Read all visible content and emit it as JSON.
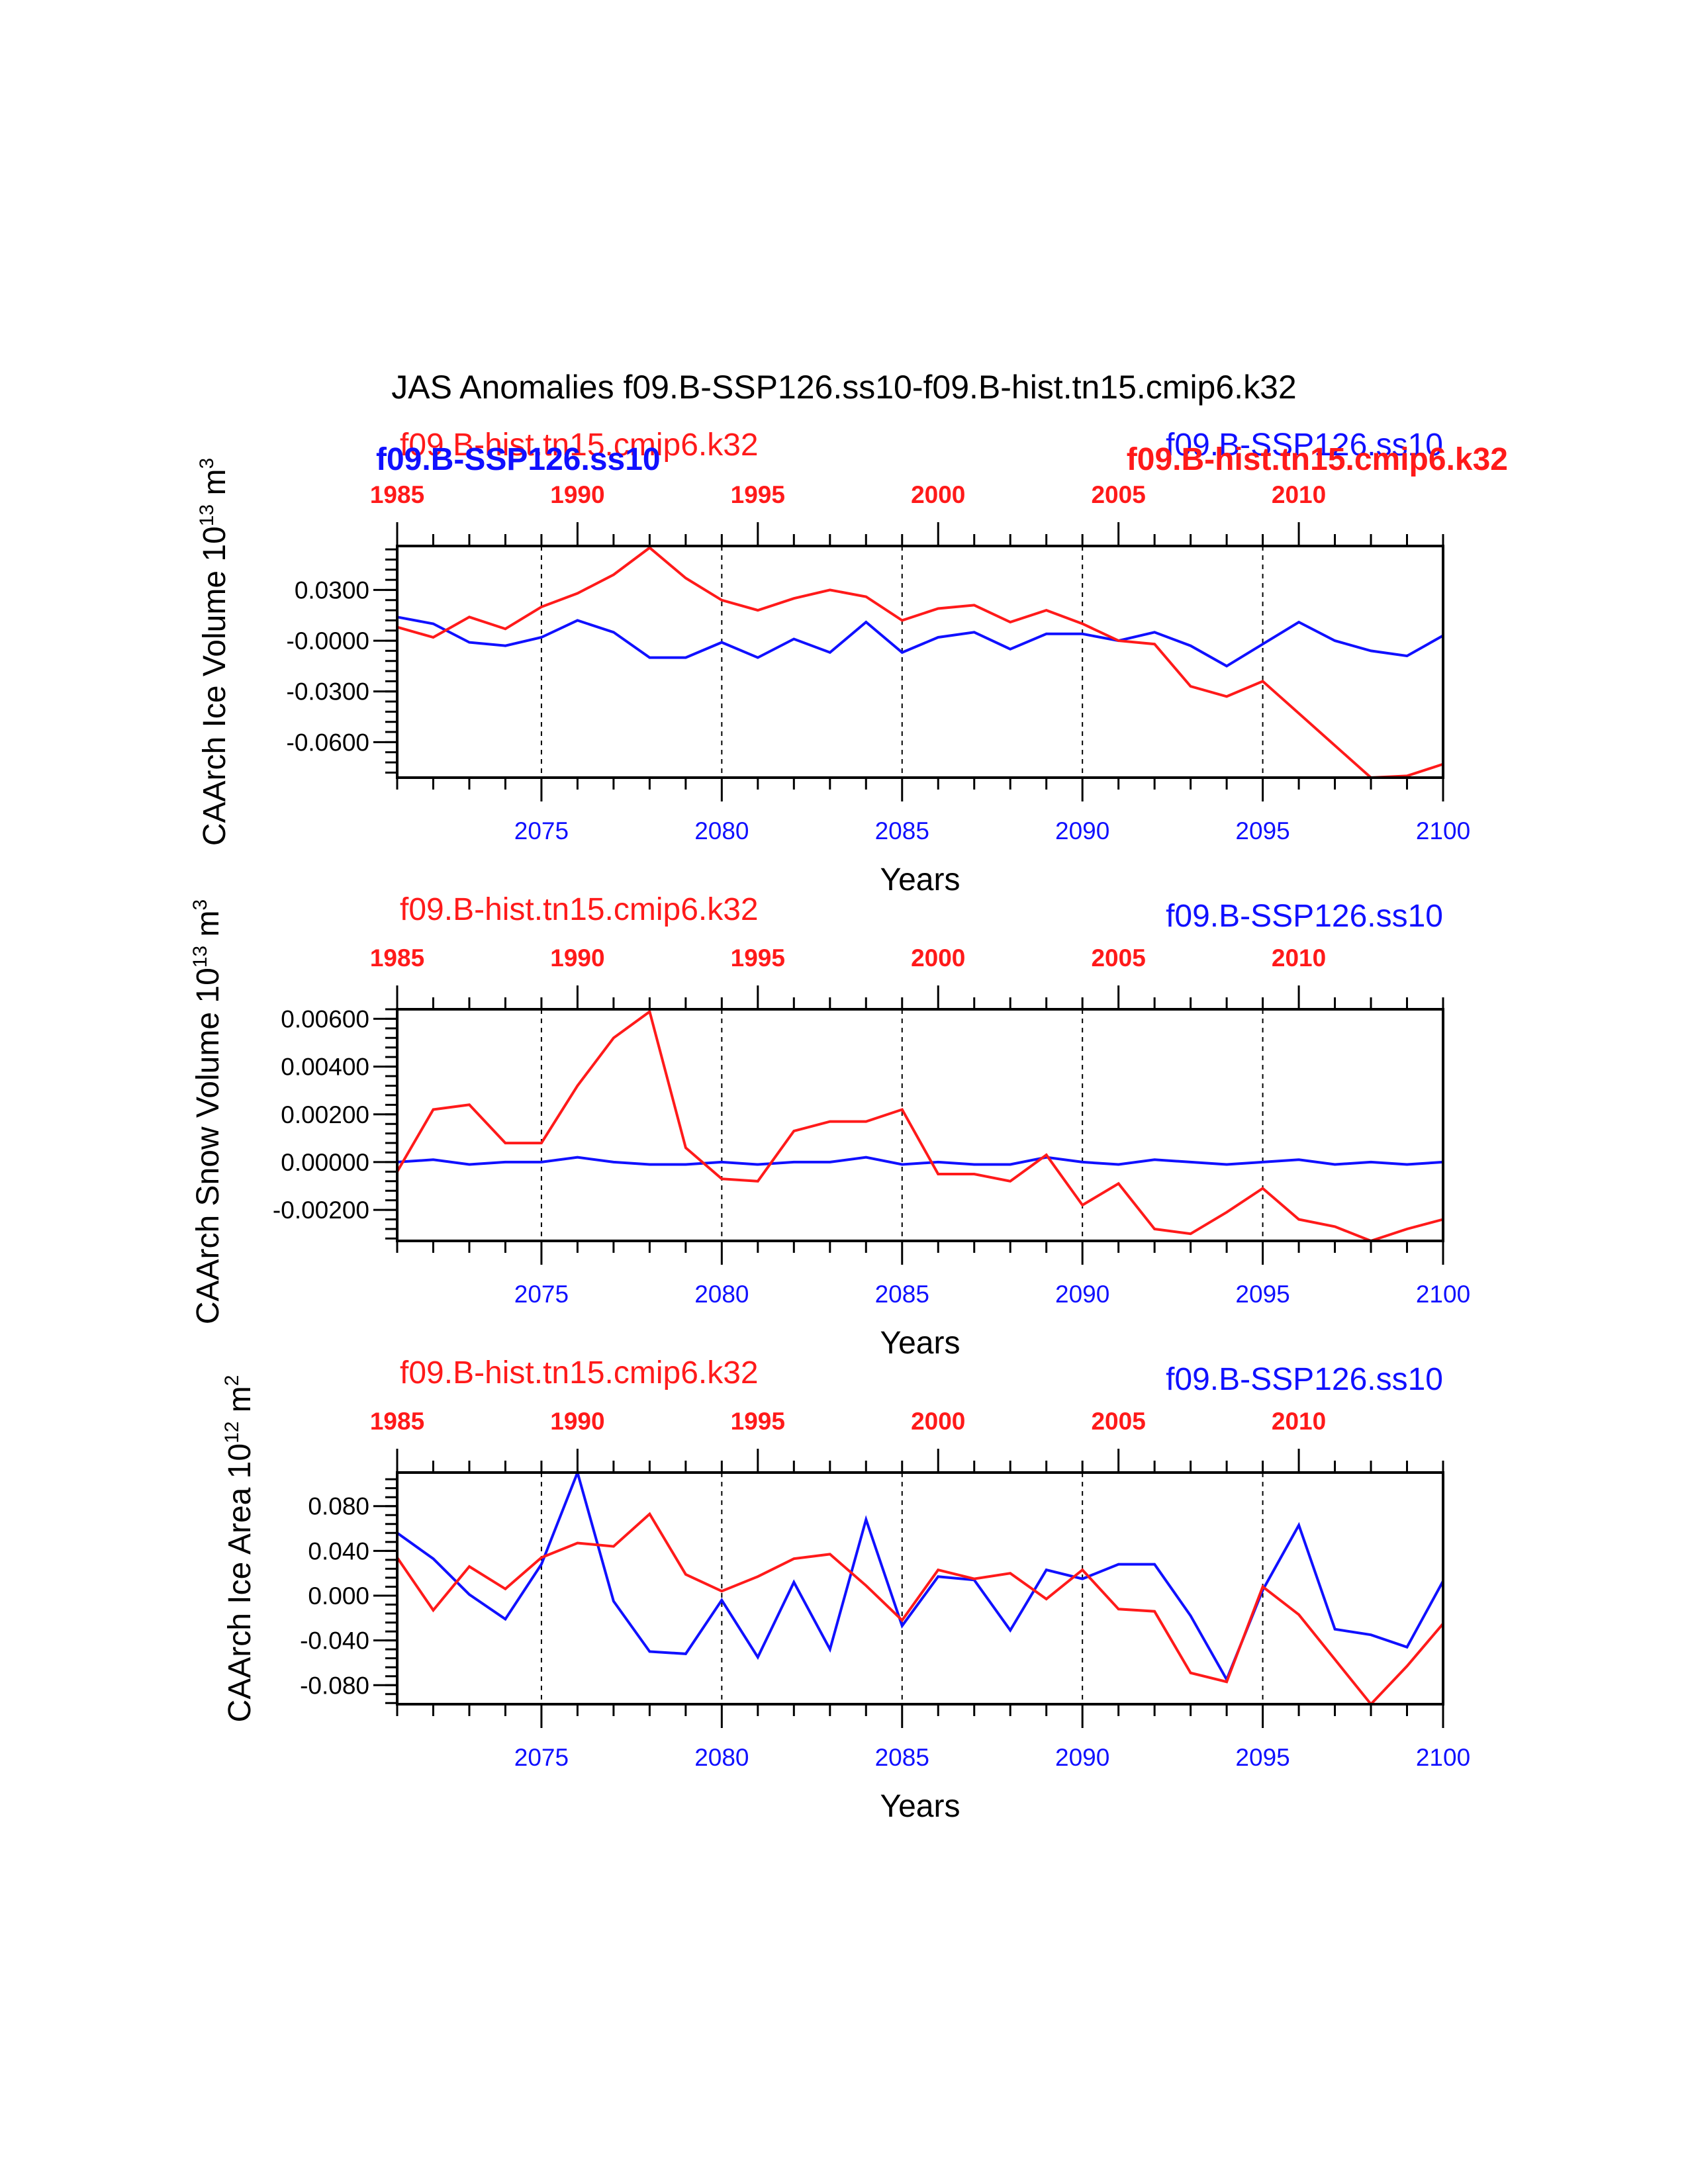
{
  "figure": {
    "title": "JAS Anomalies f09.B-SSP126.ss10-f09.B-hist.tn15.cmip6.k32",
    "colors": {
      "ssp": "#1010ff",
      "hist": "#ff1a1a",
      "axis": "#000000"
    }
  },
  "chart_data": [
    {
      "type": "line",
      "ylabel": "CAArch Ice Volume 10",
      "ylabel_exp": "13",
      "ylabel_unit": " m",
      "ylabel_unit_exp": "3",
      "xlabel": "Years",
      "ylim": [
        -0.081,
        0.056
      ],
      "yticks": [
        0.03,
        0.0,
        -0.03,
        -0.06
      ],
      "ytick_labels": [
        "0.0300",
        "-0.0000",
        "-0.0300",
        "-0.0600"
      ],
      "xlim": [
        2071,
        2100
      ],
      "xticks": [
        2075,
        2080,
        2085,
        2090,
        2095,
        2100
      ],
      "xtick_labels": [
        "2075",
        "2080",
        "2085",
        "2090",
        "2095",
        "2100"
      ],
      "top_xlim": [
        1985,
        2014
      ],
      "top_xticks": [
        1985,
        1990,
        1995,
        2000,
        2005,
        2010
      ],
      "top_xtick_labels": [
        "1985",
        "1990",
        "1995",
        "2000",
        "2005",
        "2010"
      ],
      "vlines": [
        2075,
        2080,
        2085,
        2090,
        2095
      ],
      "labels": {
        "hist_top": "f09.B-hist.tn15.cmip6.k32",
        "ssp_top": "f09.B-SSP126.ss10",
        "ssp_left_bold": "f09.B-SSP126.ss10",
        "hist_right_bold": "f09.B-hist.tn15.cmip6.k32"
      },
      "x": [
        2071,
        2072,
        2073,
        2074,
        2075,
        2076,
        2077,
        2078,
        2079,
        2080,
        2081,
        2082,
        2083,
        2084,
        2085,
        2086,
        2087,
        2088,
        2089,
        2090,
        2091,
        2092,
        2093,
        2094,
        2095,
        2096,
        2097,
        2098,
        2099,
        2100
      ],
      "series": [
        {
          "name": "f09.B-SSP126.ss10",
          "color": "#1010ff",
          "values": [
            0.014,
            0.01,
            -0.001,
            -0.003,
            0.002,
            0.012,
            0.005,
            -0.01,
            -0.01,
            -0.001,
            -0.01,
            0.001,
            -0.007,
            0.011,
            -0.007,
            0.002,
            0.005,
            -0.005,
            0.004,
            0.004,
            0.0,
            0.005,
            -0.003,
            -0.015,
            -0.002,
            0.011,
            0.0,
            -0.006,
            -0.009,
            0.003
          ]
        },
        {
          "name": "f09.B-hist.tn15.cmip6.k32",
          "color": "#ff1a1a",
          "values": [
            0.008,
            0.002,
            0.014,
            0.007,
            0.02,
            0.028,
            0.039,
            0.055,
            0.037,
            0.024,
            0.018,
            0.025,
            0.03,
            0.026,
            0.012,
            0.019,
            0.021,
            0.011,
            0.018,
            0.01,
            0.0,
            -0.002,
            -0.027,
            -0.033,
            -0.024,
            -0.043,
            -0.062,
            -0.083,
            -0.08,
            -0.073
          ]
        }
      ]
    },
    {
      "type": "line",
      "ylabel": "CAArch Snow Volume 10",
      "ylabel_exp": "13",
      "ylabel_unit": " m",
      "ylabel_unit_exp": "3",
      "xlabel": "Years",
      "ylim": [
        -0.0033,
        0.0064
      ],
      "yticks": [
        0.006,
        0.004,
        0.002,
        0.0,
        -0.002
      ],
      "ytick_labels": [
        "0.00600",
        "0.00400",
        "0.00200",
        "0.00000",
        "-0.00200"
      ],
      "xlim": [
        2071,
        2100
      ],
      "xticks": [
        2075,
        2080,
        2085,
        2090,
        2095,
        2100
      ],
      "xtick_labels": [
        "2075",
        "2080",
        "2085",
        "2090",
        "2095",
        "2100"
      ],
      "top_xlim": [
        1985,
        2014
      ],
      "top_xticks": [
        1985,
        1990,
        1995,
        2000,
        2005,
        2010
      ],
      "top_xtick_labels": [
        "1985",
        "1990",
        "1995",
        "2000",
        "2005",
        "2010"
      ],
      "vlines": [
        2075,
        2080,
        2085,
        2090,
        2095
      ],
      "labels": {
        "hist_top": "f09.B-hist.tn15.cmip6.k32",
        "ssp_top": "f09.B-SSP126.ss10"
      },
      "x": [
        2071,
        2072,
        2073,
        2074,
        2075,
        2076,
        2077,
        2078,
        2079,
        2080,
        2081,
        2082,
        2083,
        2084,
        2085,
        2086,
        2087,
        2088,
        2089,
        2090,
        2091,
        2092,
        2093,
        2094,
        2095,
        2096,
        2097,
        2098,
        2099,
        2100
      ],
      "series": [
        {
          "name": "f09.B-SSP126.ss10",
          "color": "#1010ff",
          "values": [
            0.0,
            0.0001,
            -0.0001,
            0.0,
            0.0,
            0.0002,
            0.0,
            -0.0001,
            -0.0001,
            0.0,
            -0.0001,
            0.0,
            0.0,
            0.0002,
            -0.0001,
            0.0,
            -0.0001,
            -0.0001,
            0.0002,
            0.0,
            -0.0001,
            0.0001,
            0.0,
            -0.0001,
            0.0,
            0.0001,
            -0.0001,
            0.0,
            -0.0001,
            0.0
          ]
        },
        {
          "name": "f09.B-hist.tn15.cmip6.k32",
          "color": "#ff1a1a",
          "values": [
            -0.0004,
            0.0022,
            0.0024,
            0.0008,
            0.0008,
            0.0032,
            0.0052,
            0.0063,
            0.0006,
            -0.0007,
            -0.0008,
            0.0013,
            0.0017,
            0.0017,
            0.0022,
            -0.0005,
            -0.0005,
            -0.0008,
            0.0003,
            -0.0018,
            -0.0009,
            -0.0028,
            -0.003,
            -0.0021,
            -0.0011,
            -0.0024,
            -0.0027,
            -0.0033,
            -0.0028,
            -0.0024
          ]
        }
      ]
    },
    {
      "type": "line",
      "ylabel": "CAArch Ice Area 10",
      "ylabel_exp": "12",
      "ylabel_unit": " m",
      "ylabel_unit_exp": "2",
      "xlabel": "Years",
      "ylim": [
        -0.097,
        0.11
      ],
      "yticks": [
        0.08,
        0.04,
        0.0,
        -0.04,
        -0.08
      ],
      "ytick_labels": [
        "0.080",
        "0.040",
        "0.000",
        "-0.040",
        "-0.080"
      ],
      "xlim": [
        2071,
        2100
      ],
      "xticks": [
        2075,
        2080,
        2085,
        2090,
        2095,
        2100
      ],
      "xtick_labels": [
        "2075",
        "2080",
        "2085",
        "2090",
        "2095",
        "2100"
      ],
      "top_xlim": [
        1985,
        2014
      ],
      "top_xticks": [
        1985,
        1990,
        1995,
        2000,
        2005,
        2010
      ],
      "top_xtick_labels": [
        "1985",
        "1990",
        "1995",
        "2000",
        "2005",
        "2010"
      ],
      "vlines": [
        2075,
        2080,
        2085,
        2090,
        2095
      ],
      "labels": {
        "hist_top": "f09.B-hist.tn15.cmip6.k32",
        "ssp_top": "f09.B-SSP126.ss10"
      },
      "x": [
        2071,
        2072,
        2073,
        2074,
        2075,
        2076,
        2077,
        2078,
        2079,
        2080,
        2081,
        2082,
        2083,
        2084,
        2085,
        2086,
        2087,
        2088,
        2089,
        2090,
        2091,
        2092,
        2093,
        2094,
        2095,
        2096,
        2097,
        2098,
        2099,
        2100
      ],
      "series": [
        {
          "name": "f09.B-SSP126.ss10",
          "color": "#1010ff",
          "values": [
            0.056,
            0.033,
            0.001,
            -0.021,
            0.028,
            0.11,
            -0.005,
            -0.05,
            -0.052,
            -0.004,
            -0.055,
            0.012,
            -0.048,
            0.068,
            -0.027,
            0.017,
            0.014,
            -0.031,
            0.023,
            0.015,
            0.028,
            0.028,
            -0.018,
            -0.075,
            0.005,
            0.063,
            -0.03,
            -0.035,
            -0.046,
            0.013
          ]
        },
        {
          "name": "f09.B-hist.tn15.cmip6.k32",
          "color": "#ff1a1a",
          "values": [
            0.034,
            -0.013,
            0.026,
            0.006,
            0.034,
            0.047,
            0.044,
            0.073,
            0.019,
            0.004,
            0.017,
            0.033,
            0.037,
            0.009,
            -0.022,
            0.023,
            0.015,
            0.02,
            -0.003,
            0.023,
            -0.012,
            -0.014,
            -0.069,
            -0.077,
            0.008,
            -0.017,
            -0.057,
            -0.097,
            -0.063,
            -0.025
          ]
        }
      ]
    }
  ]
}
